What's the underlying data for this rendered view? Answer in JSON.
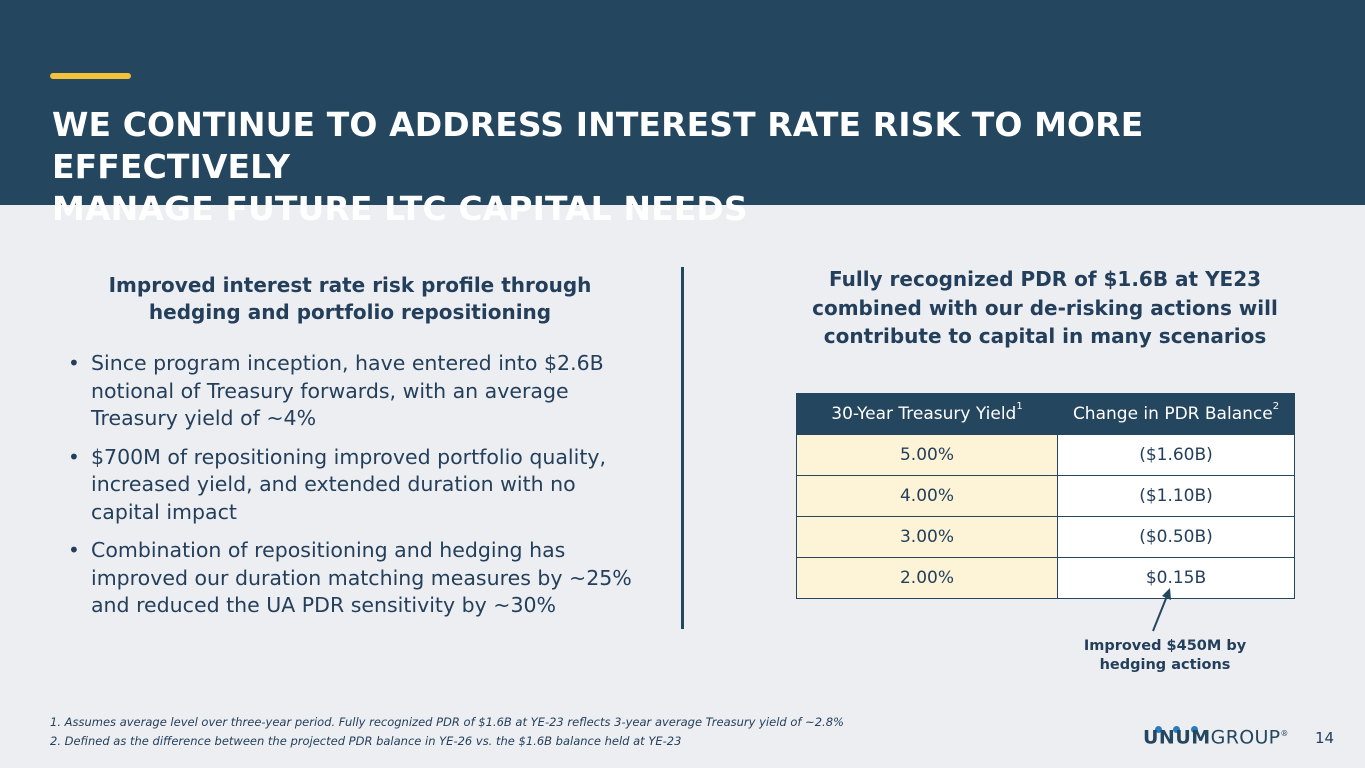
{
  "header": {
    "title_line1": "WE CONTINUE TO ADDRESS INTEREST RATE RISK TO MORE EFFECTIVELY",
    "title_line2": "MANAGE FUTURE LTC CAPITAL NEEDS"
  },
  "left": {
    "heading_line1": "Improved interest rate risk profile through",
    "heading_line2": "hedging and portfolio repositioning",
    "bullets": [
      "Since program inception, have entered into $2.6B notional of Treasury forwards, with an average Treasury yield of ~4%",
      "$700M of repositioning improved portfolio quality, increased yield, and extended duration with no capital impact",
      "Combination of repositioning and hedging has improved our duration matching measures by ~25% and reduced the UA PDR sensitivity by ~30%"
    ]
  },
  "right": {
    "heading_line1": "Fully recognized PDR of $1.6B at YE23",
    "heading_line2": "combined with our de-risking actions will",
    "heading_line3": "contribute to capital in many scenarios",
    "table": {
      "col1_header": "30-Year Treasury Yield",
      "col1_sup": "1",
      "col2_header": "Change in PDR Balance",
      "col2_sup": "2",
      "rows": [
        {
          "yield": "5.00%",
          "change": "($1.60B)"
        },
        {
          "yield": "4.00%",
          "change": "($1.10B)"
        },
        {
          "yield": "3.00%",
          "change": "($0.50B)"
        },
        {
          "yield": "2.00%",
          "change": "$0.15B"
        }
      ]
    },
    "callout_line1": "Improved $450M by",
    "callout_line2": "hedging actions"
  },
  "footnotes": [
    "1. Assumes average level over three-year period. Fully recognized PDR of $1.6B at YE-23 reflects 3-year average Treasury yield of ~2.8%",
    "2. Defined as the difference between the projected PDR balance in YE-26 vs. the $1.6B balance held at YE-23"
  ],
  "logo": {
    "unum": "UNUM",
    "group": "GROUP",
    "mark": "®"
  },
  "page_number": "14",
  "colors": {
    "header_bg": "#24465e",
    "accent": "#f2c23a",
    "background": "#eceef1",
    "yield_cell": "#fdf3d6",
    "logo_dots": "#2a7cc0"
  }
}
